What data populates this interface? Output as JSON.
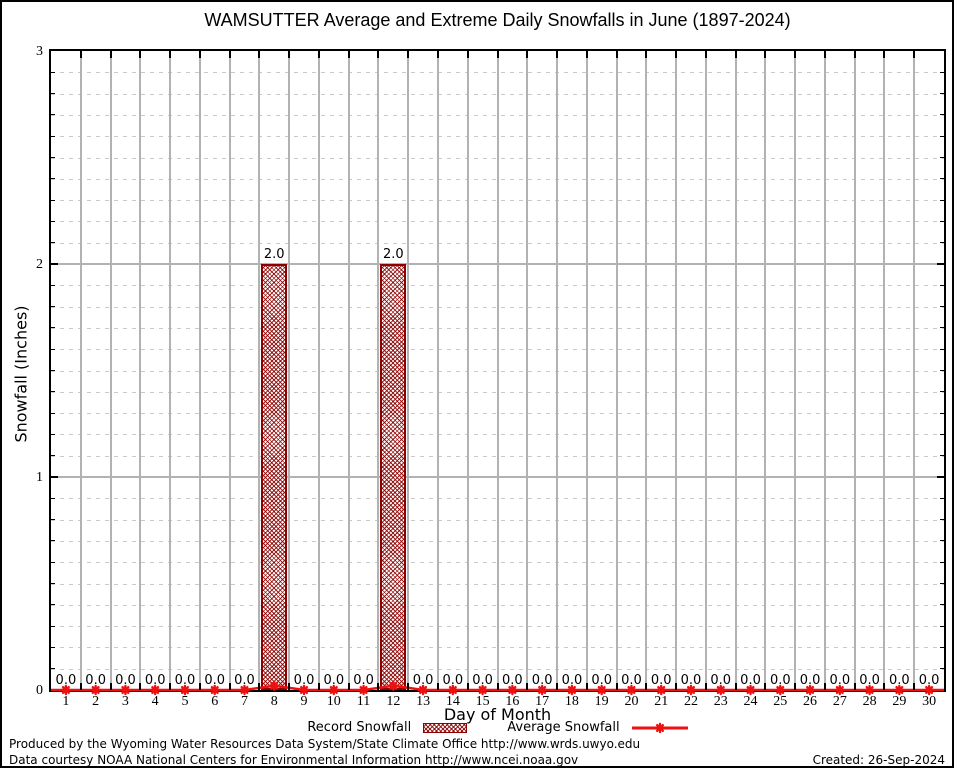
{
  "chart_data": {
    "type": "bar",
    "title": "WAMSUTTER Average and Extreme Daily Snowfalls in June (1897-2024)",
    "xlabel": "Day of Month",
    "ylabel": "Snowfall (Inches)",
    "ylim": [
      0,
      3
    ],
    "y_major_ticks": [
      0,
      1,
      2,
      3
    ],
    "y_tick_labels": [
      "0",
      "1",
      "2",
      "3"
    ],
    "y_minor_step": 0.1,
    "grid": true,
    "legend_position": "bottom",
    "categories": [
      1,
      2,
      3,
      4,
      5,
      6,
      7,
      8,
      9,
      10,
      11,
      12,
      13,
      14,
      15,
      16,
      17,
      18,
      19,
      20,
      21,
      22,
      23,
      24,
      25,
      26,
      27,
      28,
      29,
      30
    ],
    "series": [
      {
        "name": "Record Snowfall",
        "type": "bar",
        "color": "#8b0000",
        "values": [
          0,
          0,
          0,
          0,
          0,
          0,
          0,
          2.0,
          0,
          0,
          0,
          2.0,
          0,
          0,
          0,
          0,
          0,
          0,
          0,
          0,
          0,
          0,
          0,
          0,
          0,
          0,
          0,
          0,
          0,
          0
        ]
      },
      {
        "name": "Average Snowfall",
        "type": "line",
        "color": "#ee1111",
        "values": [
          0,
          0,
          0,
          0,
          0,
          0,
          0,
          0.02,
          0,
          0,
          0,
          0.02,
          0,
          0,
          0,
          0,
          0,
          0,
          0,
          0,
          0,
          0,
          0,
          0,
          0,
          0,
          0,
          0,
          0,
          0
        ]
      }
    ],
    "value_labels": [
      "0.0",
      "0.0",
      "0.0",
      "0.0",
      "0.0",
      "0.0",
      "0.0",
      "2.0",
      "0.0",
      "0.0",
      "0.0",
      "2.0",
      "0.0",
      "0.0",
      "0.0",
      "0.0",
      "0.0",
      "0.0",
      "0.0",
      "0.0",
      "0.0",
      "0.0",
      "0.0",
      "0.0",
      "0.0",
      "0.0",
      "0.0",
      "0.0",
      "0.0",
      "0.0"
    ]
  },
  "colors": {
    "record_bar": "#8b0000",
    "average_line": "#ee1111",
    "grid_major": "#b2b2b2",
    "grid_minor": "#c9c9c9",
    "frame": "#000000"
  },
  "footer": {
    "line1": "Produced by the Wyoming Water Resources Data System/State Climate Office http://www.wrds.uwyo.edu",
    "line2": "Data courtesy NOAA National Centers for Environmental Information http://www.ncei.noaa.gov",
    "created": "Created: 26-Sep-2024"
  }
}
